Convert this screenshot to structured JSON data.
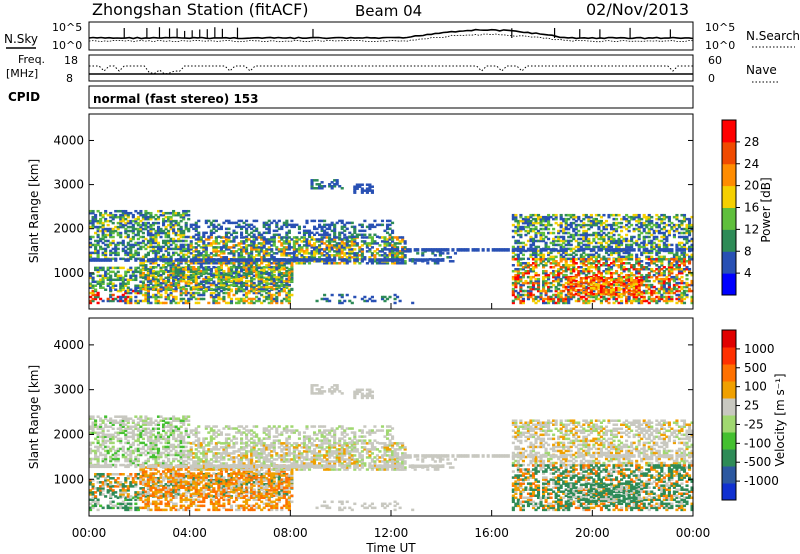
{
  "header": {
    "station": "Zhongshan Station (fitACF)",
    "beam": "Beam 04",
    "date": "02/Nov/2013"
  },
  "labels": {
    "nsky": "N.Sky",
    "nsearch": "N.Search",
    "freq_top": "Freq.",
    "freq_unit": "[MHz]",
    "nave": "Nave",
    "cpid": "CPID",
    "mode": "normal (fast stereo) 153",
    "nsky_ticks": [
      "10^5",
      "10^0"
    ],
    "freq_ticks": [
      "18",
      "8"
    ],
    "nave_ticks": [
      "60",
      "0"
    ]
  },
  "chart_data": [
    {
      "type": "heatmap",
      "name": "power",
      "ylabel": "Slant Range [km]",
      "xlabel": "",
      "ylim": [
        180,
        4600
      ],
      "yticks": [
        "4000",
        "3000",
        "2000",
        "1000"
      ],
      "colorbar": {
        "label": "Power [dB]",
        "ticks": [
          "28",
          "24",
          "20",
          "16",
          "12",
          "8",
          "4"
        ],
        "colors": [
          "#0000ff",
          "#2850b4",
          "#2e8b57",
          "#5fbf3c",
          "#f5d000",
          "#ff8c00",
          "#f04a00",
          "#ff0000"
        ]
      }
    },
    {
      "type": "heatmap",
      "name": "velocity",
      "ylabel": "Slant Range [km]",
      "xlabel": "Time UT",
      "ylim": [
        180,
        4600
      ],
      "yticks": [
        "4000",
        "3000",
        "2000",
        "1000"
      ],
      "xticks": [
        "00:00",
        "04:00",
        "08:00",
        "12:00",
        "16:00",
        "20:00",
        "00:00"
      ],
      "colorbar": {
        "label": "Velocity [m s⁻¹]",
        "ticks": [
          "1000",
          "500",
          "100",
          "25",
          "-25",
          "-100",
          "-500",
          "-1000"
        ],
        "colors": [
          "#1030d0",
          "#2c58a0",
          "#2e8b57",
          "#44c030",
          "#a0d870",
          "#c8c8c0",
          "#f0a000",
          "#ff7000",
          "#ff3000",
          "#e00000"
        ]
      }
    }
  ]
}
